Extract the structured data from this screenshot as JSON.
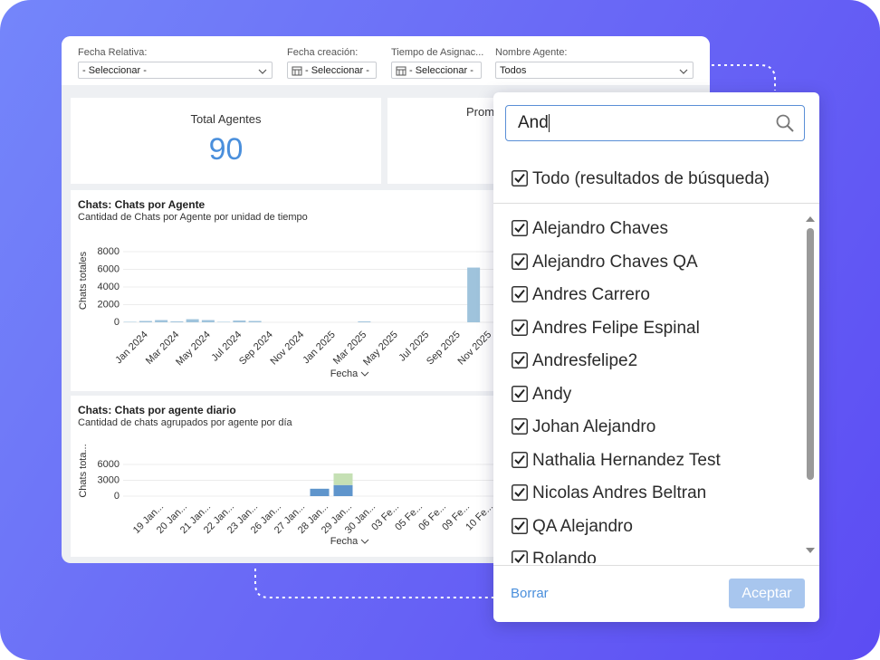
{
  "filters": [
    {
      "label": "Fecha Relativa:",
      "value": "- Seleccionar -"
    },
    {
      "label": "Fecha creación:",
      "value": "- Seleccionar -"
    },
    {
      "label": "Tiempo de Asignac...",
      "value": "- Seleccionar -"
    },
    {
      "label": "Nombre Agente:",
      "value": "Todos"
    }
  ],
  "kpis": [
    {
      "label": "Total Agentes",
      "value": 90
    },
    {
      "label": "Prom"
    }
  ],
  "charts": [
    {
      "type": "bar",
      "title": "Chats: Chats por Agente",
      "subtitle": "Cantidad de Chats por Agente por unidad de tiempo",
      "y_label": "Chats totales",
      "x_label": "Fecha",
      "categories": [
        "Jan 2024",
        null,
        "Mar 2024",
        null,
        "May 2024",
        null,
        "Jul 2024",
        null,
        "Sep 2024",
        null,
        "Nov 2024",
        null,
        "Jan 2025",
        null,
        "Mar 2025",
        null,
        "May 2025",
        null,
        "Jul 2025",
        null,
        "Sep 2025",
        null,
        "Nov 2025"
      ],
      "series": [
        {
          "color": "#9fc3dc",
          "values": [
            50,
            150,
            250,
            100,
            350,
            250,
            50,
            200,
            150,
            0,
            0,
            0,
            0,
            0,
            0,
            100,
            0,
            0,
            0,
            0,
            0,
            0,
            6200
          ]
        }
      ],
      "ylim": [
        0,
        8000
      ],
      "yticks": [
        0,
        2000,
        4000,
        6000,
        8000
      ],
      "grid": true
    },
    {
      "type": "bar",
      "title": "Chats: Chats por agente diario",
      "subtitle": "Cantidad de chats agrupados por agente por día",
      "y_label": "Chats tota...",
      "x_label": "Fecha",
      "categories": [
        "19 Jan...",
        "20 Jan...",
        "21 Jan...",
        "22 Jan...",
        "23 Jan...",
        "26 Jan...",
        "27 Jan...",
        "28 Jan...",
        "29 Jan...",
        "30 Jan...",
        "03 Fe...",
        "05 Fe...",
        "06 Fe...",
        "09 Fe...",
        "10 Fe..."
      ],
      "series": [
        {
          "color": "#5f95cc",
          "values": [
            0,
            0,
            0,
            0,
            0,
            0,
            0,
            1400,
            2100,
            0,
            0,
            0,
            0,
            0,
            0
          ]
        },
        {
          "color": "#c5e0b4",
          "values": [
            0,
            0,
            0,
            0,
            0,
            0,
            0,
            0,
            2200,
            0,
            0,
            0,
            0,
            0,
            0
          ]
        }
      ],
      "ylim": [
        0,
        7500
      ],
      "yticks": [
        0,
        3000,
        6000
      ],
      "grid": true
    }
  ],
  "dropdown": {
    "search": "And",
    "select_all": "Todo (resultados de búsqueda)",
    "options": [
      "Alejandro Chaves",
      "Alejandro Chaves QA",
      "Andres Carrero",
      "Andres Felipe Espinal",
      "Andresfelipe2",
      "Andy",
      "Johan Alejandro",
      "Nathalia Hernandez Test",
      "Nicolas Andres Beltran",
      "QA Alejandro",
      "Rolando"
    ],
    "clear": "Borrar",
    "accept": "Aceptar"
  }
}
